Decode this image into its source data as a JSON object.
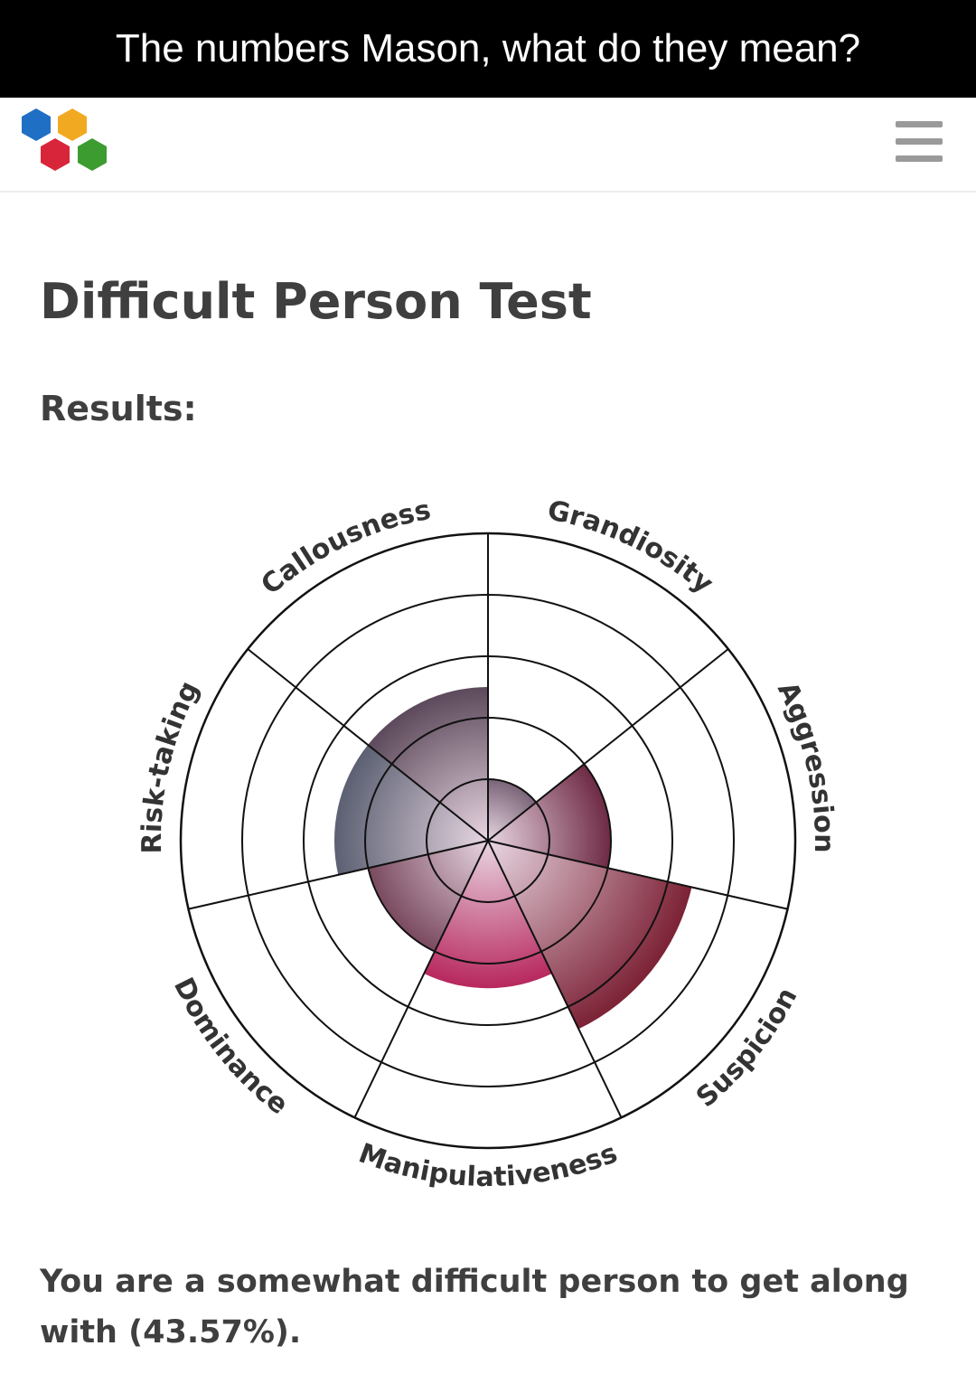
{
  "meme": {
    "caption": "The numbers Mason, what do they mean?"
  },
  "header": {
    "logo_icon": "hexagon-cluster-logo-icon",
    "logo_colors": [
      "#1f6fc4",
      "#f2a922",
      "#d8253a",
      "#3c9c2f"
    ],
    "menu_icon": "hamburger-menu-icon"
  },
  "page": {
    "title": "Difficult Person Test",
    "results_label": "Results:",
    "result_text": "You are a somewhat difficult person to get along with (43.57%)."
  },
  "chart_data": {
    "type": "polar-area",
    "title": "",
    "scale_max": 5,
    "rings": 5,
    "segments": [
      {
        "label": "Grandiosity",
        "value": 1.0,
        "color": "#7a6478"
      },
      {
        "label": "Aggression",
        "value": 2.0,
        "color": "#6e2a44"
      },
      {
        "label": "Suspicion",
        "value": 3.4,
        "color": "#7c2235"
      },
      {
        "label": "Manipulativeness",
        "value": 2.4,
        "color": "#b8285e"
      },
      {
        "label": "Dominance",
        "value": 2.0,
        "color": "#7a4a5f"
      },
      {
        "label": "Risk-taking",
        "value": 2.5,
        "color": "#5b6072"
      },
      {
        "label": "Callousness",
        "value": 2.5,
        "color": "#5c4a5c"
      }
    ]
  }
}
